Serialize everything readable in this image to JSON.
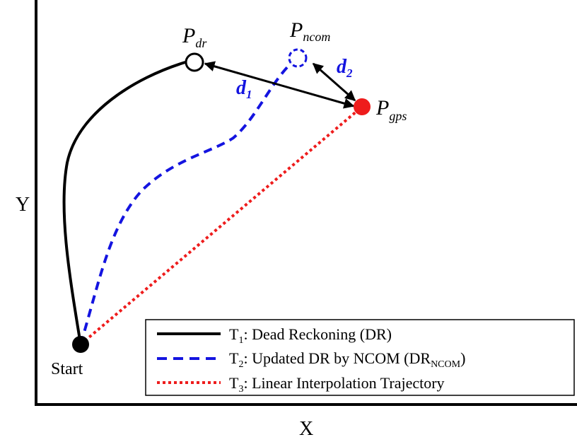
{
  "axes": {
    "x_label": "X",
    "y_label": "Y"
  },
  "points": {
    "start": {
      "label": "Start"
    },
    "p_dr": {
      "base": "P",
      "sub": "dr"
    },
    "p_ncom": {
      "base": "P",
      "sub": "ncom"
    },
    "p_gps": {
      "base": "P",
      "sub": "gps"
    }
  },
  "distances": {
    "d1": {
      "base": "d",
      "sub": "1"
    },
    "d2": {
      "base": "d",
      "sub": "2"
    }
  },
  "legend": {
    "items": [
      {
        "key": "t1",
        "prefix": "T",
        "sub": "1",
        "text": ": Dead Reckoning (DR)",
        "text_sub": "",
        "text_after": "",
        "style": "solid",
        "color": "#000000"
      },
      {
        "key": "t2",
        "prefix": "T",
        "sub": "2",
        "text": ": Updated DR by NCOM (DR",
        "text_sub": "NCOM",
        "text_after": ")",
        "style": "dashed",
        "color": "#1414e0"
      },
      {
        "key": "t3",
        "prefix": "T",
        "sub": "3",
        "text": ": Linear Interpolation Trajectory",
        "text_sub": "",
        "text_after": "",
        "style": "dotted",
        "color": "#ee1c1c"
      }
    ]
  },
  "colors": {
    "dr": "#000000",
    "ncom": "#1414e0",
    "linear": "#ee1c1c",
    "gps_point": "#ee1c1c",
    "distance_label": "#1414e0"
  }
}
